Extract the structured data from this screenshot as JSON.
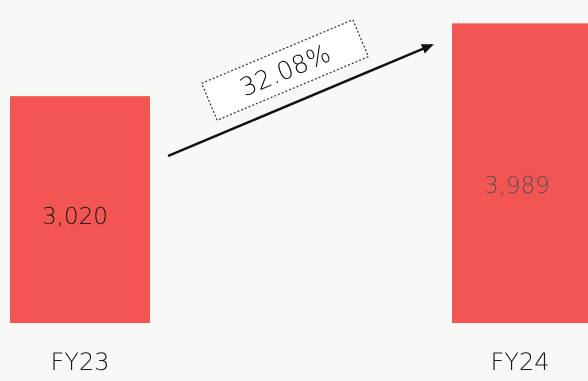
{
  "chart_data": {
    "type": "bar",
    "categories": [
      "FY23",
      "FY24"
    ],
    "values": [
      3020,
      3989
    ],
    "value_labels": [
      "3,020",
      "3,989"
    ],
    "growth_label": "32.08%",
    "bar_color": "#f25552",
    "value_label_colors": [
      "#1a1a1a",
      "#555555"
    ],
    "ylim": [
      0,
      4300
    ],
    "grid": false,
    "legend": "none"
  }
}
